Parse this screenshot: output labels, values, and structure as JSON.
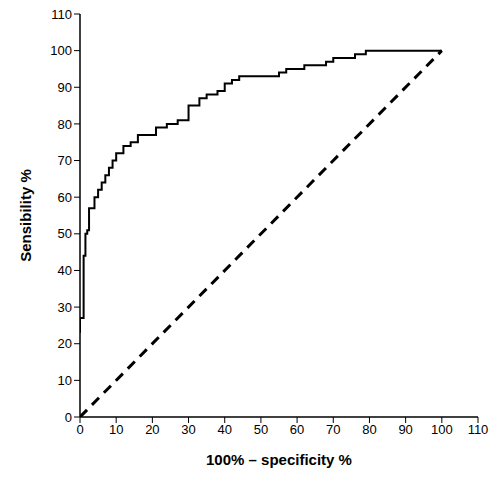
{
  "chart_data": {
    "type": "line",
    "x_label": "100% – specificity %",
    "y_label": "Sensibility %",
    "xlim": [
      0,
      110
    ],
    "xticks": [
      0,
      10,
      20,
      30,
      40,
      50,
      60,
      70,
      80,
      90,
      100,
      110
    ],
    "ylim": [
      0,
      110
    ],
    "yticks": [
      0,
      10,
      20,
      30,
      40,
      50,
      60,
      70,
      80,
      90,
      100,
      110
    ],
    "grid": false,
    "series": [
      {
        "color": "#000000",
        "line_style": "solid",
        "x": [
          0,
          0,
          1,
          1,
          1.5,
          1.5,
          2,
          2,
          2.5,
          2.5,
          4,
          4,
          5,
          5,
          6,
          6,
          7,
          7,
          8,
          8,
          9,
          9,
          10,
          10,
          12,
          12,
          14,
          14,
          16,
          16,
          21,
          21,
          24,
          24,
          27,
          27,
          30,
          30,
          33,
          33,
          35,
          35,
          38,
          38,
          40,
          40,
          42,
          42,
          44,
          44,
          55,
          55,
          57,
          57,
          62,
          62,
          68,
          68,
          70,
          70,
          76,
          76,
          79,
          79,
          100
        ],
        "values": [
          23,
          27,
          27,
          44,
          44,
          50,
          50,
          51,
          51,
          57,
          57,
          60,
          60,
          62,
          62,
          64,
          64,
          66,
          66,
          68,
          68,
          70,
          70,
          72,
          72,
          74,
          74,
          75,
          75,
          77,
          77,
          79,
          79,
          80,
          80,
          81,
          81,
          85,
          85,
          87,
          87,
          88,
          88,
          89,
          89,
          91,
          91,
          92,
          92,
          93,
          93,
          94,
          94,
          95,
          95,
          96,
          96,
          97,
          97,
          98,
          98,
          99,
          99,
          100,
          100
        ]
      },
      {
        "color": "#000000",
        "line_style": "dashed",
        "x": [
          0,
          100
        ],
        "values": [
          0,
          100
        ]
      }
    ]
  }
}
